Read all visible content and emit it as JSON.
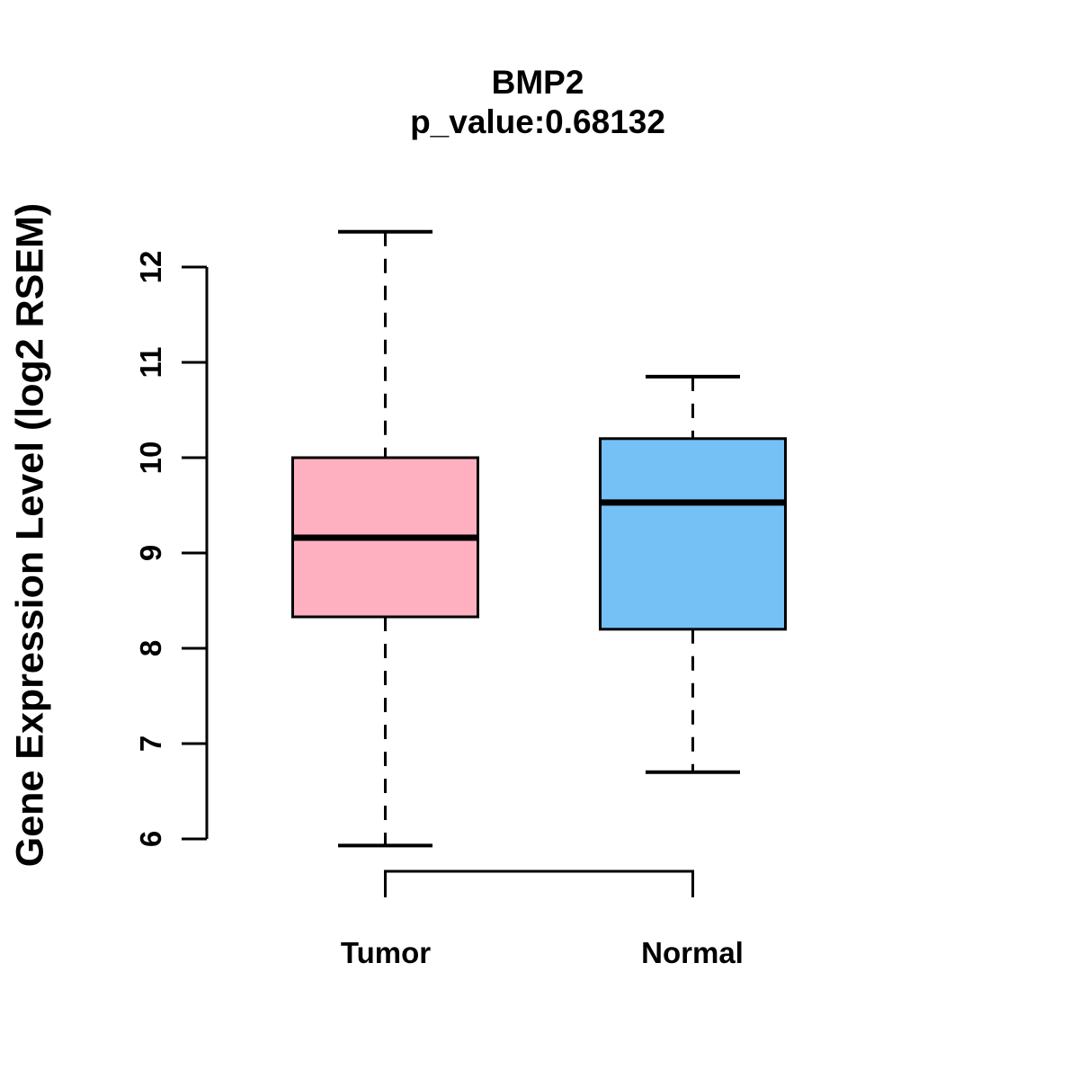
{
  "chart_data": {
    "type": "boxplot",
    "title": "BMP2",
    "subtitle": "p_value:0.68132",
    "ylabel": "Gene Expression Level (log2 RSEM)",
    "xlabel": "",
    "categories": [
      "Tumor",
      "Normal"
    ],
    "yticks": [
      6,
      7,
      8,
      9,
      10,
      11,
      12
    ],
    "ylim": [
      6,
      12
    ],
    "grid": false,
    "legend": "none",
    "series": [
      {
        "name": "Tumor",
        "color": "#FFB0C0",
        "whisker_low": 5.93,
        "q1": 8.33,
        "median": 9.16,
        "q3": 10.0,
        "whisker_high": 12.37
      },
      {
        "name": "Normal",
        "color": "#75C1F5",
        "whisker_low": 6.7,
        "q1": 8.2,
        "median": 9.53,
        "q3": 10.2,
        "whisker_high": 10.85
      }
    ],
    "colors": {
      "box_border": "#000000",
      "median_line": "#000000",
      "axis": "#000000",
      "text": "#000000",
      "background": "#FFFFFF"
    }
  }
}
